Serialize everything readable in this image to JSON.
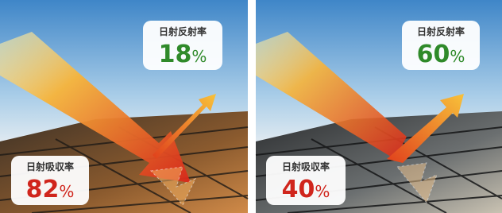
{
  "panels": [
    {
      "reflect": {
        "label": "日射反射率",
        "value": "18",
        "unit": "%"
      },
      "absorb": {
        "label": "日射吸収率",
        "value": "82",
        "unit": "%"
      }
    },
    {
      "reflect": {
        "label": "日射反射率",
        "value": "60",
        "unit": "%"
      },
      "absorb": {
        "label": "日射吸収率",
        "value": "40",
        "unit": "%"
      }
    }
  ]
}
